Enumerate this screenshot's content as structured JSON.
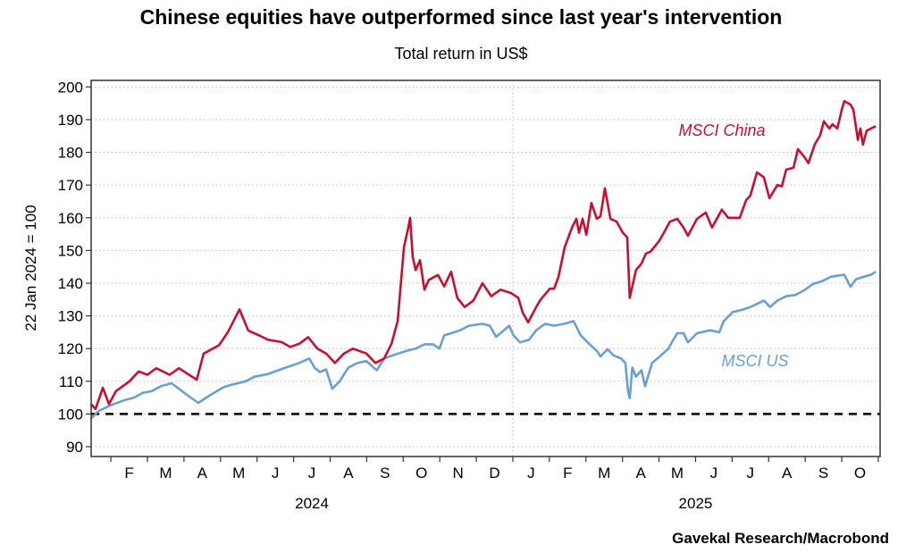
{
  "chart_data": {
    "type": "line",
    "title": "Chinese equities have outperformed since last year's intervention",
    "subtitle": "Total return in US$",
    "ylabel": "22 Jan 2024 = 100",
    "xlabel": "",
    "source": "Gavekal Research/Macrobond",
    "x_unit": "months since 1 Jan 2024",
    "xlim": [
      0.46,
      22.05
    ],
    "ylim": [
      87,
      202
    ],
    "yticks": [
      90,
      100,
      110,
      120,
      130,
      140,
      150,
      160,
      170,
      180,
      190,
      200
    ],
    "month_labels": [
      "F",
      "M",
      "A",
      "M",
      "J",
      "J",
      "A",
      "S",
      "O",
      "N",
      "D",
      "J",
      "F",
      "M",
      "A",
      "M",
      "J",
      "J",
      "A",
      "S",
      "O"
    ],
    "year_labels": [
      {
        "label": "2024",
        "center": 6.5
      },
      {
        "label": "2025",
        "center": 17
      }
    ],
    "year_divider": 12,
    "reference_line": {
      "y": 100,
      "style": "dashed",
      "color": "#000000"
    },
    "grid": true,
    "series": [
      {
        "name": "MSCI China",
        "color": "#c8102e",
        "label": "MSCI China",
        "points": [
          [
            0.46,
            103
          ],
          [
            0.58,
            101.5
          ],
          [
            0.78,
            108
          ],
          [
            0.95,
            103
          ],
          [
            1.14,
            107
          ],
          [
            1.51,
            110
          ],
          [
            1.76,
            113
          ],
          [
            2.0,
            112
          ],
          [
            2.24,
            114
          ],
          [
            2.61,
            112
          ],
          [
            2.86,
            114
          ],
          [
            3.35,
            110.5
          ],
          [
            3.54,
            118.5
          ],
          [
            3.96,
            121
          ],
          [
            4.2,
            125
          ],
          [
            4.52,
            132
          ],
          [
            4.76,
            125.5
          ],
          [
            5.06,
            124
          ],
          [
            5.3,
            122.7
          ],
          [
            5.67,
            122
          ],
          [
            5.91,
            120.5
          ],
          [
            6.16,
            121.5
          ],
          [
            6.4,
            123.5
          ],
          [
            6.65,
            120
          ],
          [
            6.89,
            118.5
          ],
          [
            7.13,
            115.6
          ],
          [
            7.38,
            118.5
          ],
          [
            7.62,
            120
          ],
          [
            7.99,
            118.5
          ],
          [
            8.24,
            115.6
          ],
          [
            8.48,
            117
          ],
          [
            8.68,
            121.5
          ],
          [
            8.85,
            128.5
          ],
          [
            9.02,
            151
          ],
          [
            9.14,
            157
          ],
          [
            9.19,
            160
          ],
          [
            9.26,
            148
          ],
          [
            9.34,
            144
          ],
          [
            9.46,
            147
          ],
          [
            9.58,
            138
          ],
          [
            9.7,
            141
          ],
          [
            9.95,
            142.5
          ],
          [
            10.12,
            139
          ],
          [
            10.31,
            143.5
          ],
          [
            10.48,
            135.5
          ],
          [
            10.68,
            132.7
          ],
          [
            10.92,
            134.7
          ],
          [
            11.17,
            140
          ],
          [
            11.41,
            136
          ],
          [
            11.66,
            138
          ],
          [
            11.95,
            137
          ],
          [
            12.15,
            135.5
          ],
          [
            12.27,
            131
          ],
          [
            12.42,
            128
          ],
          [
            12.64,
            132.7
          ],
          [
            12.76,
            135
          ],
          [
            13.01,
            138.3
          ],
          [
            13.13,
            138.3
          ],
          [
            13.25,
            142
          ],
          [
            13.42,
            151
          ],
          [
            13.62,
            157
          ],
          [
            13.74,
            159.7
          ],
          [
            13.81,
            155.4
          ],
          [
            13.91,
            159.7
          ],
          [
            14.01,
            154.8
          ],
          [
            14.15,
            164.5
          ],
          [
            14.3,
            159.7
          ],
          [
            14.4,
            160.5
          ],
          [
            14.52,
            169
          ],
          [
            14.67,
            159.7
          ],
          [
            14.84,
            158.8
          ],
          [
            15.01,
            155.4
          ],
          [
            15.13,
            154
          ],
          [
            15.2,
            135.5
          ],
          [
            15.37,
            144
          ],
          [
            15.52,
            146
          ],
          [
            15.64,
            149
          ],
          [
            15.77,
            149.7
          ],
          [
            16.01,
            153
          ],
          [
            16.13,
            155.4
          ],
          [
            16.3,
            158.8
          ],
          [
            16.5,
            159.7
          ],
          [
            16.67,
            157
          ],
          [
            16.79,
            154.5
          ],
          [
            17.04,
            159.7
          ],
          [
            17.28,
            161.6
          ],
          [
            17.45,
            157
          ],
          [
            17.72,
            162.5
          ],
          [
            17.89,
            160
          ],
          [
            18.21,
            160
          ],
          [
            18.38,
            165.3
          ],
          [
            18.5,
            166.8
          ],
          [
            18.68,
            173.9
          ],
          [
            18.87,
            172.4
          ],
          [
            19.02,
            166
          ],
          [
            19.24,
            170
          ],
          [
            19.36,
            169.6
          ],
          [
            19.48,
            174.7
          ],
          [
            19.68,
            175.3
          ],
          [
            19.8,
            181
          ],
          [
            19.97,
            178.7
          ],
          [
            20.09,
            176.7
          ],
          [
            20.26,
            182.4
          ],
          [
            20.41,
            185.2
          ],
          [
            20.51,
            189.5
          ],
          [
            20.66,
            187.3
          ],
          [
            20.75,
            188.6
          ],
          [
            20.88,
            187.3
          ],
          [
            21.0,
            193
          ],
          [
            21.07,
            195.7
          ],
          [
            21.24,
            194.6
          ],
          [
            21.32,
            193
          ],
          [
            21.44,
            183.8
          ],
          [
            21.51,
            187.3
          ],
          [
            21.58,
            182.4
          ],
          [
            21.68,
            186.6
          ],
          [
            21.8,
            187.3
          ],
          [
            21.93,
            188
          ]
        ]
      },
      {
        "name": "MSCI US",
        "color": "#6a9fd4",
        "label": "MSCI US",
        "points": [
          [
            0.46,
            98.6
          ],
          [
            0.66,
            100.9
          ],
          [
            1.02,
            102.8
          ],
          [
            1.39,
            104.3
          ],
          [
            1.63,
            105
          ],
          [
            1.88,
            106.5
          ],
          [
            2.12,
            107
          ],
          [
            2.37,
            108.5
          ],
          [
            2.66,
            109.4
          ],
          [
            2.86,
            107.7
          ],
          [
            3.1,
            105.7
          ],
          [
            3.39,
            103.4
          ],
          [
            3.71,
            105.7
          ],
          [
            4.08,
            108.2
          ],
          [
            4.32,
            109
          ],
          [
            4.69,
            110
          ],
          [
            4.93,
            111.4
          ],
          [
            5.3,
            112.2
          ],
          [
            5.79,
            114.2
          ],
          [
            6.16,
            115.6
          ],
          [
            6.43,
            117
          ],
          [
            6.57,
            114.2
          ],
          [
            6.72,
            112.8
          ],
          [
            6.89,
            113.6
          ],
          [
            7.06,
            107.7
          ],
          [
            7.26,
            110
          ],
          [
            7.5,
            114.2
          ],
          [
            7.75,
            115.6
          ],
          [
            7.99,
            116.2
          ],
          [
            8.19,
            114.2
          ],
          [
            8.28,
            113.4
          ],
          [
            8.48,
            117
          ],
          [
            8.73,
            118
          ],
          [
            9.09,
            119.3
          ],
          [
            9.34,
            120
          ],
          [
            9.58,
            121.3
          ],
          [
            9.82,
            121.3
          ],
          [
            9.99,
            120
          ],
          [
            10.12,
            124
          ],
          [
            10.31,
            124.7
          ],
          [
            10.56,
            125.6
          ],
          [
            10.8,
            127
          ],
          [
            11.17,
            127.6
          ],
          [
            11.37,
            127
          ],
          [
            11.54,
            123.6
          ],
          [
            11.66,
            124.7
          ],
          [
            11.9,
            127
          ],
          [
            12.02,
            124
          ],
          [
            12.2,
            121.9
          ],
          [
            12.44,
            122.7
          ],
          [
            12.64,
            125.6
          ],
          [
            12.88,
            127.6
          ],
          [
            13.13,
            127
          ],
          [
            13.49,
            127.8
          ],
          [
            13.66,
            128.4
          ],
          [
            13.86,
            124
          ],
          [
            14.1,
            121.3
          ],
          [
            14.3,
            119.3
          ],
          [
            14.4,
            117.6
          ],
          [
            14.59,
            119.8
          ],
          [
            14.76,
            117.9
          ],
          [
            14.96,
            117
          ],
          [
            15.08,
            115.6
          ],
          [
            15.15,
            107.1
          ],
          [
            15.2,
            104.8
          ],
          [
            15.27,
            114.2
          ],
          [
            15.37,
            111.4
          ],
          [
            15.52,
            113.4
          ],
          [
            15.62,
            108.5
          ],
          [
            15.81,
            115.6
          ],
          [
            16.06,
            118
          ],
          [
            16.25,
            119.9
          ],
          [
            16.35,
            121.9
          ],
          [
            16.5,
            124.7
          ],
          [
            16.67,
            124.7
          ],
          [
            16.79,
            121.9
          ],
          [
            17.04,
            124.7
          ],
          [
            17.4,
            125.6
          ],
          [
            17.65,
            125
          ],
          [
            17.77,
            128.4
          ],
          [
            18.02,
            131.2
          ],
          [
            18.26,
            131.8
          ],
          [
            18.5,
            132.7
          ],
          [
            18.87,
            134.7
          ],
          [
            19.04,
            132.7
          ],
          [
            19.24,
            134.7
          ],
          [
            19.48,
            136
          ],
          [
            19.73,
            136.4
          ],
          [
            19.97,
            137.8
          ],
          [
            20.22,
            139.8
          ],
          [
            20.46,
            140.6
          ],
          [
            20.71,
            142
          ],
          [
            21.07,
            142.6
          ],
          [
            21.24,
            138.9
          ],
          [
            21.39,
            141.2
          ],
          [
            21.56,
            141.8
          ],
          [
            21.8,
            142.6
          ],
          [
            21.93,
            143.5
          ]
        ]
      }
    ]
  }
}
